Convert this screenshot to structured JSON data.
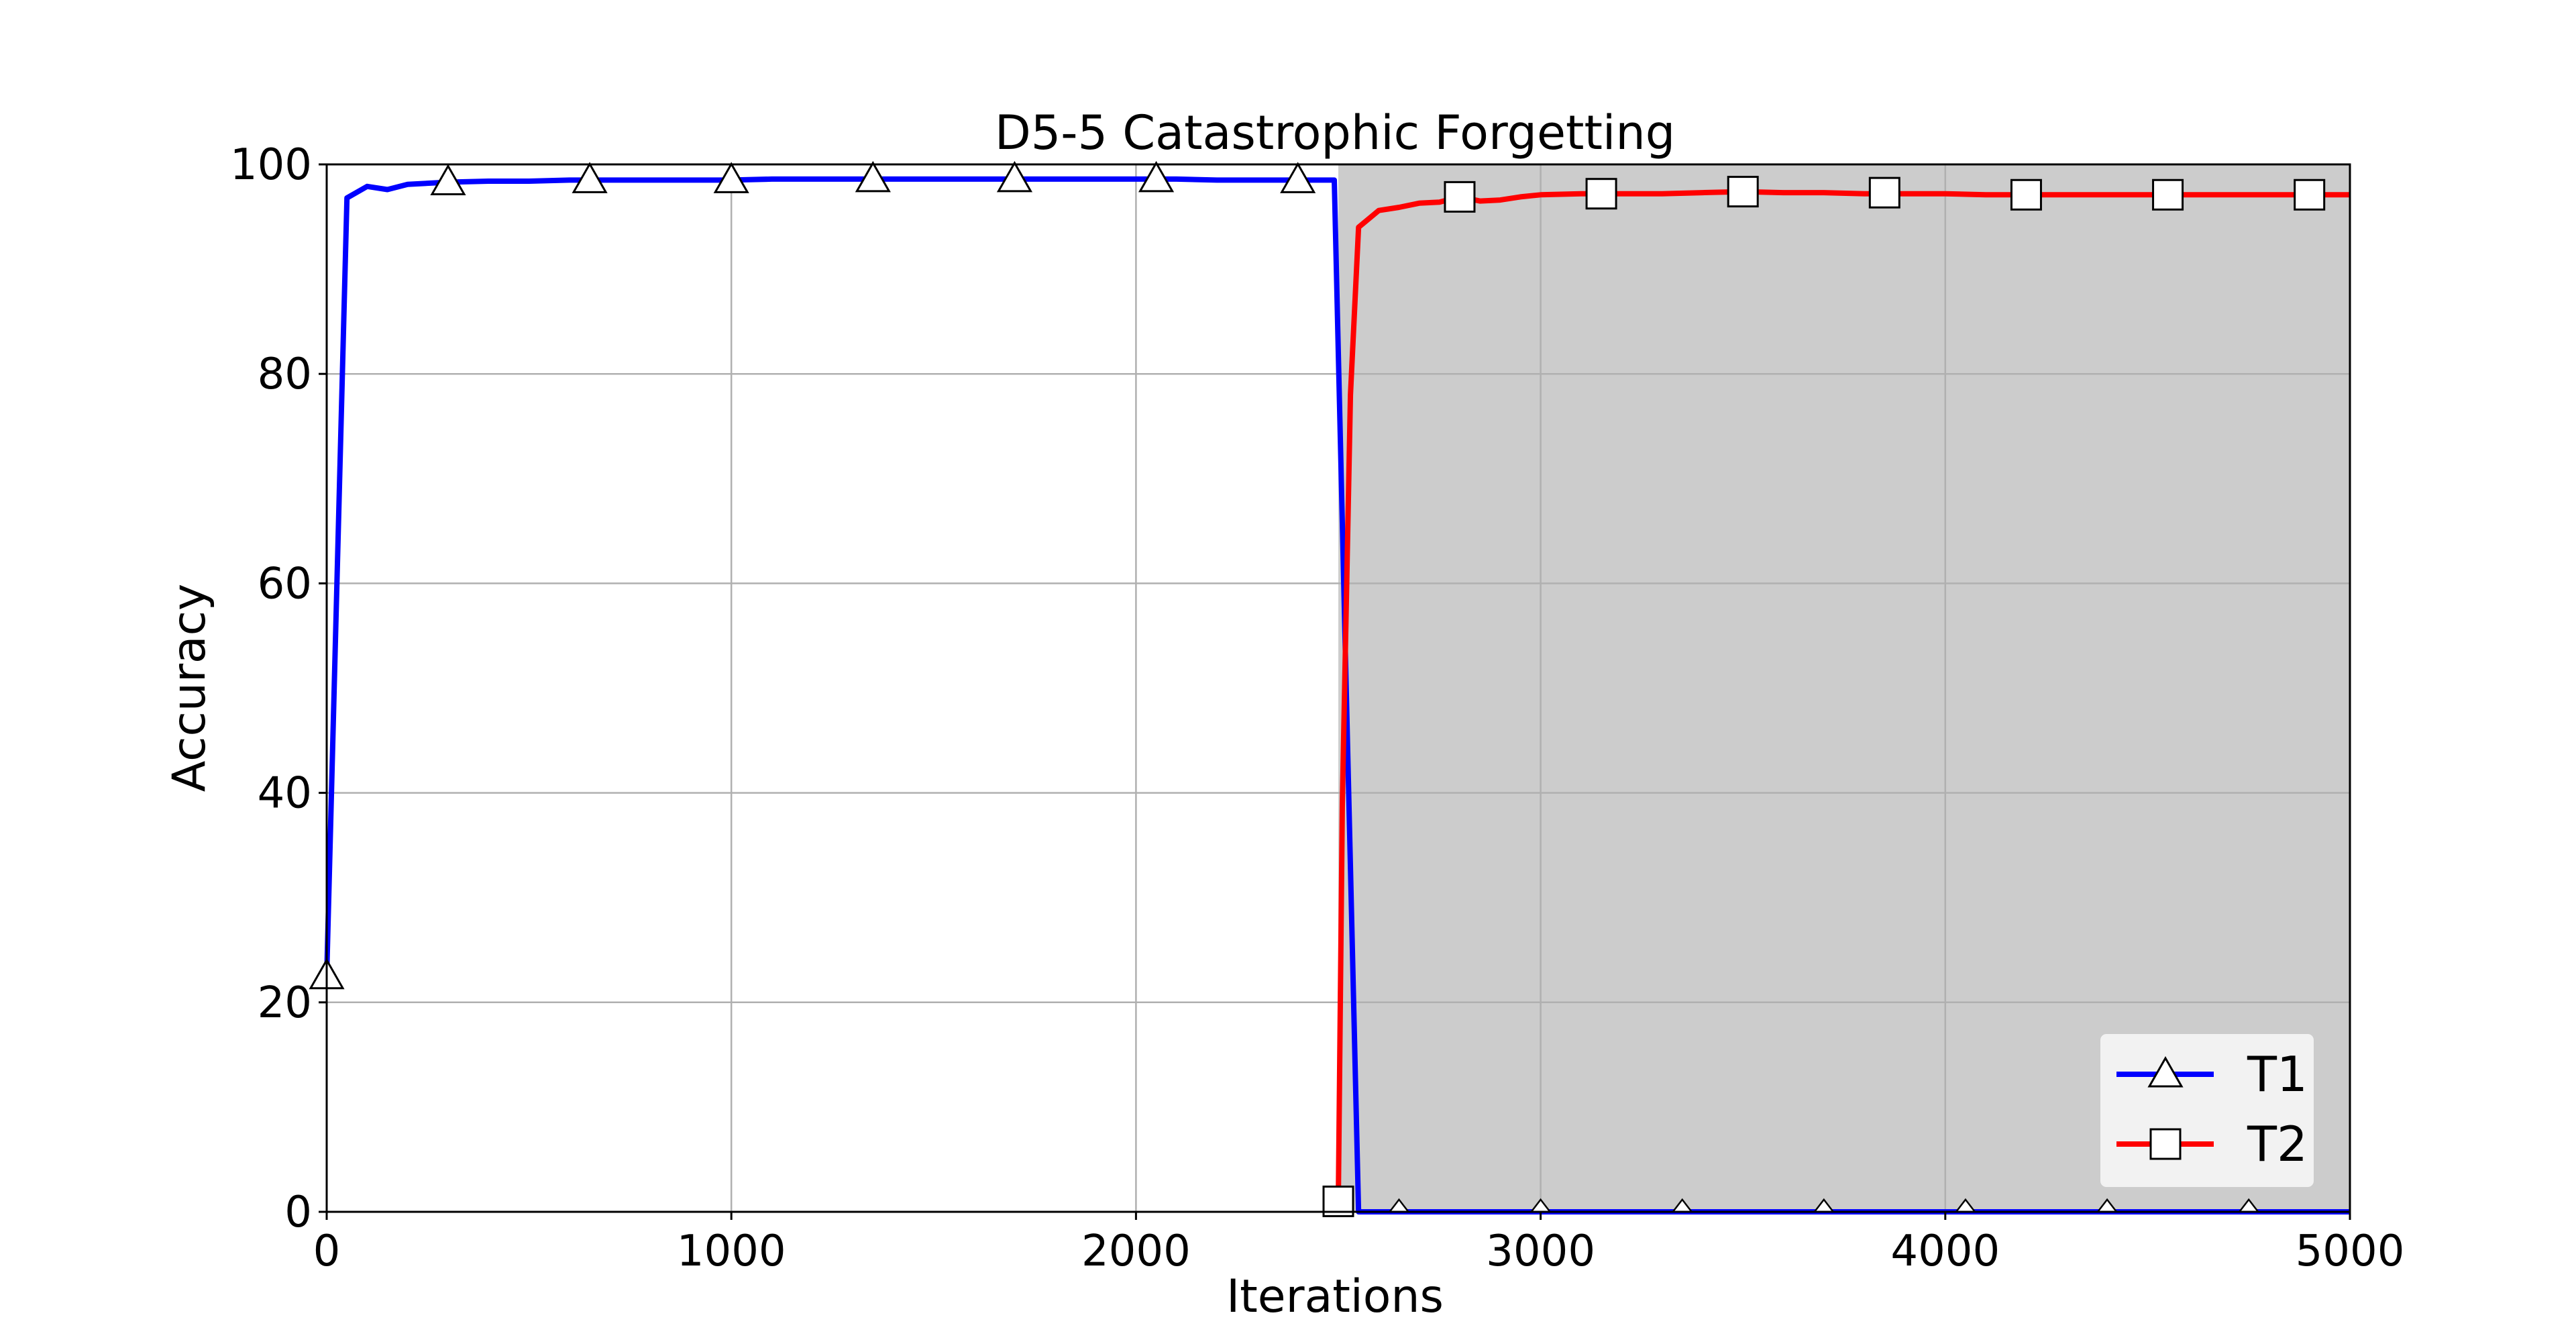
{
  "chart_data": {
    "type": "line",
    "title": "D5-5 Catastrophic Forgetting",
    "xlabel": "Iterations",
    "ylabel": "Accuracy",
    "xlim": [
      0,
      5000
    ],
    "ylim": [
      0,
      100
    ],
    "xticks": [
      0,
      1000,
      2000,
      3000,
      4000,
      5000
    ],
    "yticks": [
      0,
      20,
      40,
      60,
      80,
      100
    ],
    "grid": true,
    "legend_position": "lower-right",
    "shaded_region": {
      "x_start": 2500,
      "x_end": 5000,
      "color": "#cccccc"
    },
    "series": [
      {
        "name": "T1",
        "color": "#0000ff",
        "marker": "triangle",
        "x": [
          0,
          50,
          100,
          150,
          200,
          300,
          400,
          500,
          600,
          700,
          800,
          900,
          1000,
          1100,
          1200,
          1300,
          1400,
          1500,
          1600,
          1700,
          1800,
          1900,
          2000,
          2100,
          2200,
          2300,
          2400,
          2490,
          2500,
          2550,
          2600,
          2700,
          2800,
          3000,
          3500,
          4000,
          4500,
          5000
        ],
        "y": [
          22.5,
          96.8,
          97.9,
          97.6,
          98.1,
          98.3,
          98.4,
          98.4,
          98.5,
          98.5,
          98.5,
          98.5,
          98.5,
          98.6,
          98.6,
          98.6,
          98.6,
          98.6,
          98.6,
          98.6,
          98.6,
          98.6,
          98.6,
          98.6,
          98.5,
          98.5,
          98.5,
          98.5,
          82,
          0,
          0,
          0,
          0,
          0,
          0,
          0,
          0,
          0
        ],
        "marker_x": [
          0,
          300,
          650,
          1000,
          1350,
          1700,
          2050,
          2400,
          2650,
          3000,
          3350,
          3700,
          4050,
          4400,
          4750
        ],
        "marker_y": [
          22.5,
          98.3,
          98.5,
          98.5,
          98.6,
          98.6,
          98.6,
          98.5,
          0,
          0,
          0,
          0,
          0,
          0,
          0
        ]
      },
      {
        "name": "T2",
        "color": "#ff0000",
        "marker": "square",
        "x": [
          2500,
          2510,
          2530,
          2550,
          2600,
          2650,
          2700,
          2750,
          2800,
          2850,
          2900,
          2950,
          3000,
          3100,
          3200,
          3300,
          3400,
          3500,
          3600,
          3700,
          3800,
          3900,
          4000,
          4100,
          4200,
          4300,
          4400,
          4500,
          4600,
          4700,
          4800,
          4900,
          5000
        ],
        "y": [
          1,
          39,
          78,
          94,
          95.6,
          95.9,
          96.3,
          96.4,
          96.9,
          96.5,
          96.6,
          96.9,
          97.1,
          97.2,
          97.2,
          97.2,
          97.3,
          97.4,
          97.3,
          97.3,
          97.2,
          97.2,
          97.2,
          97.1,
          97.1,
          97.1,
          97.1,
          97.1,
          97.1,
          97.1,
          97.1,
          97.1,
          97.1
        ],
        "marker_x": [
          2500,
          2800,
          3150,
          3500,
          3850,
          4200,
          4550,
          4900
        ],
        "marker_y": [
          1,
          96.9,
          97.2,
          97.4,
          97.3,
          97.1,
          97.1,
          97.1
        ]
      }
    ]
  }
}
